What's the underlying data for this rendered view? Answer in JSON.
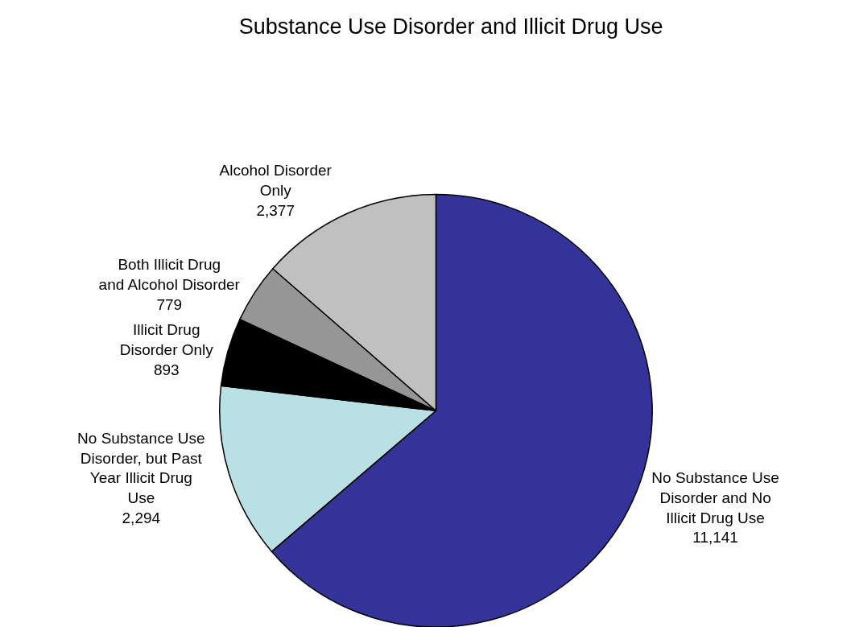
{
  "chart_data": {
    "type": "pie",
    "title": "Substance Use Disorder and Illicit Drug Use",
    "categories": [
      "No Substance Use Disorder and No Illicit Drug Use",
      "No Substance Use Disorder, but Past Year Illicit Drug Use",
      "Illicit Drug Disorder Only",
      "Both Illicit Drug and Alcohol Disorder",
      "Alcohol Disorder Only"
    ],
    "values": [
      11141,
      2294,
      893,
      779,
      2377
    ],
    "value_labels": [
      "11,141",
      "2,294",
      "893",
      "779",
      "2,377"
    ],
    "colors": [
      "#333399",
      "#b9e0e4",
      "#000000",
      "#969696",
      "#c0c0c0"
    ],
    "legend": false
  }
}
